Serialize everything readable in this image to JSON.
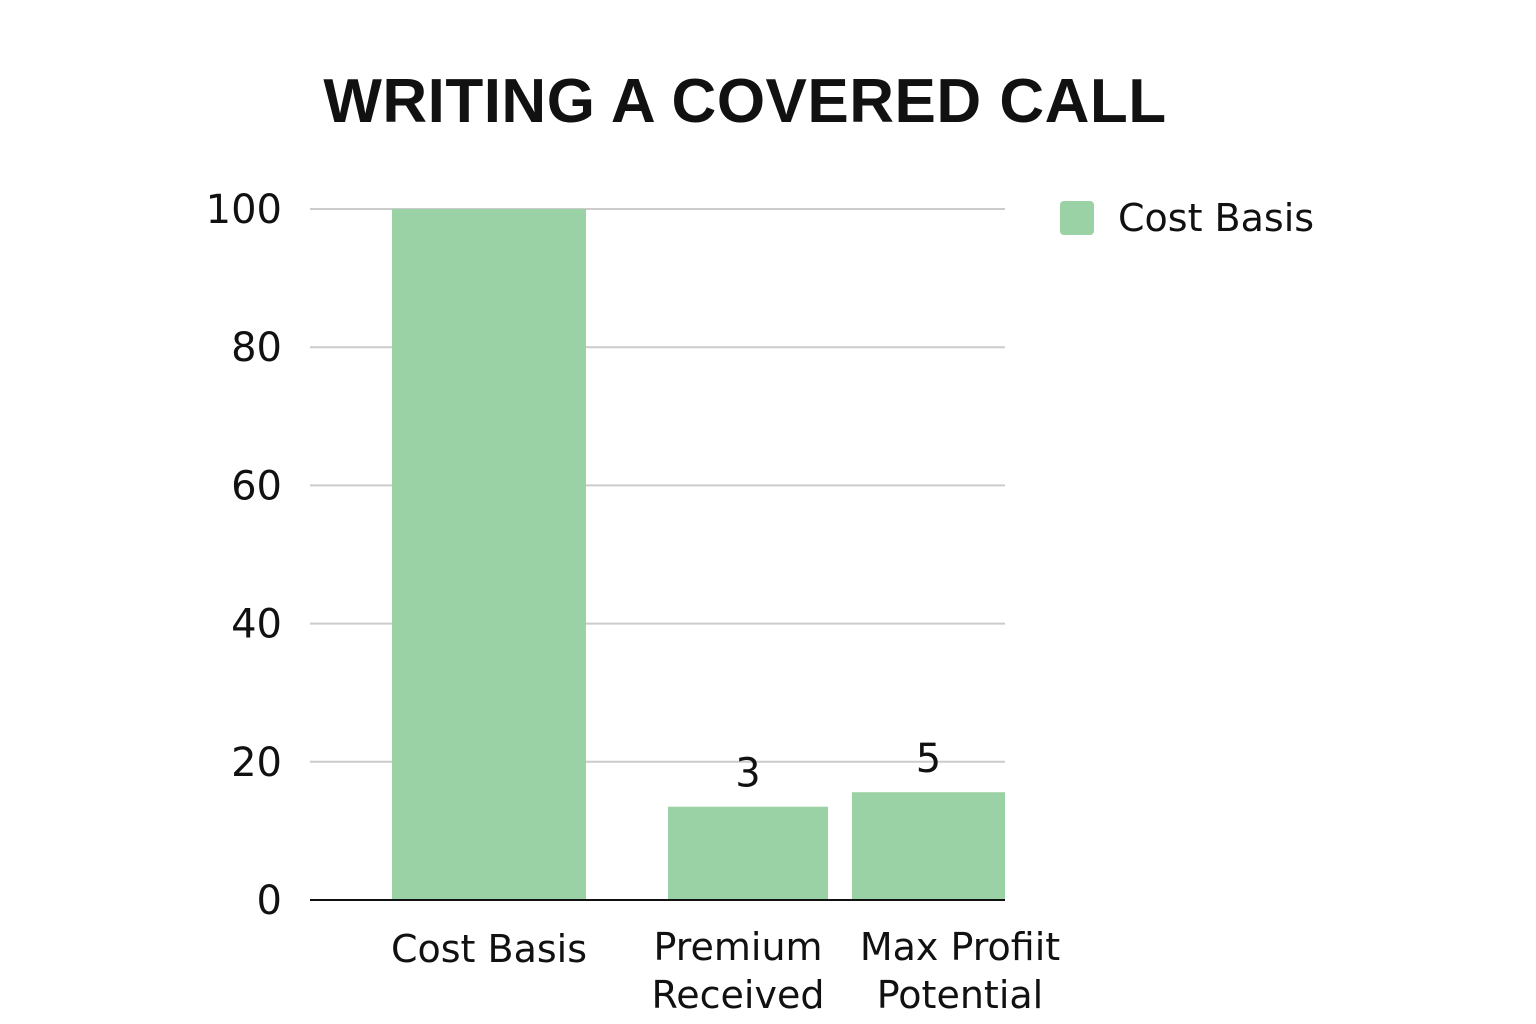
{
  "chart_data": {
    "type": "bar",
    "title": "WRITING A COVERED CALL",
    "categories": [
      [
        "Cost Basis"
      ],
      [
        "Premium",
        "Received"
      ],
      [
        "Max Profiit",
        "Potential"
      ]
    ],
    "series": [
      {
        "name": "Cost Basis",
        "values": [
          100,
          13.5,
          15.6
        ],
        "data_labels": [
          "",
          "3",
          "5"
        ],
        "color": "#9bd2a5"
      }
    ],
    "yticks": [
      0,
      20,
      40,
      60,
      80,
      100
    ],
    "ylim": [
      0,
      100
    ],
    "grid": true,
    "legend_position": "top-right",
    "gridline_color": "#cccccc",
    "axis_color": "#111111"
  }
}
